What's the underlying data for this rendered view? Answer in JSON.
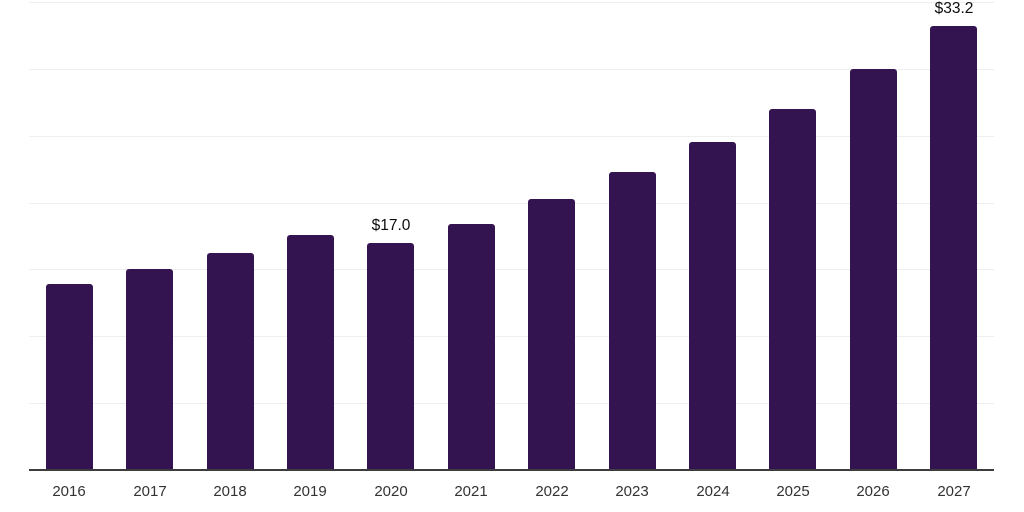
{
  "chart_data": {
    "type": "bar",
    "title": "",
    "subtitle": "",
    "xlabel": "",
    "ylabel": "",
    "categories": [
      "2016",
      "2017",
      "2018",
      "2019",
      "2020",
      "2021",
      "2022",
      "2023",
      "2024",
      "2025",
      "2026",
      "2027"
    ],
    "values": [
      13.9,
      15.0,
      16.2,
      17.6,
      17.0,
      18.4,
      20.3,
      22.3,
      24.5,
      27.0,
      30.0,
      33.2
    ],
    "ylim": [
      0,
      35
    ],
    "grid": true,
    "grid_step": 5,
    "legend_position": "none",
    "y_axis_labels_visible": false,
    "data_labels": [
      {
        "category": "2020",
        "text": "$17.0"
      },
      {
        "category": "2027",
        "text": "$33.2"
      }
    ],
    "colors": {
      "bar": "#341450",
      "grid": "#efefef",
      "axis": "#3d3d3d",
      "tick_label": "#333333",
      "data_label": "#0d0d0d",
      "background": "#ffffff"
    }
  }
}
